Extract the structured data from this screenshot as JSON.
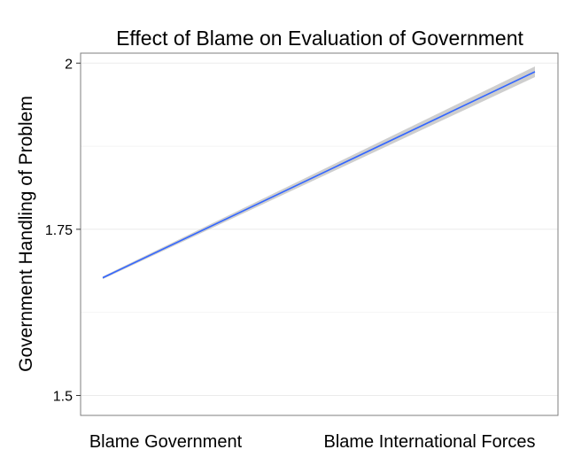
{
  "chart_data": {
    "type": "line",
    "title": "Effect of Blame on Evaluation of Government",
    "xlabel": "",
    "ylabel": "Government Handling of Problem",
    "categories": [
      "Blame Government",
      "Blame International Forces"
    ],
    "series": [
      {
        "values": [
          1.677,
          1.987
        ],
        "ci_lower": [
          1.675,
          1.979
        ],
        "ci_upper": [
          1.679,
          1.995
        ],
        "color": "#3366FF"
      }
    ],
    "yticks": [
      1.5,
      1.75,
      2
    ],
    "ytick_labels": [
      "1.5",
      "1.75",
      "2"
    ],
    "ylim": [
      1.47,
      2.015
    ],
    "grid": true,
    "legend": "none",
    "colors": {
      "line": "#3366FF",
      "ribbon": "#BDBDBD",
      "grid": "#EBEBEB",
      "panel_border": "#7F7F7F"
    }
  }
}
